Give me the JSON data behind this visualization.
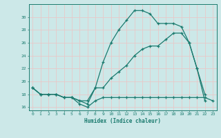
{
  "line1_x": [
    0,
    1,
    2,
    3,
    4,
    5,
    6,
    7,
    8,
    9,
    10,
    11,
    12,
    13,
    14,
    15,
    16,
    17,
    18,
    19,
    20,
    21,
    22
  ],
  "line1_y": [
    19,
    18,
    18,
    18,
    17.5,
    17.5,
    17,
    16.5,
    19,
    23,
    26,
    28,
    29.5,
    31,
    31,
    30.5,
    29,
    29,
    29,
    28.5,
    26,
    22,
    18
  ],
  "line2_x": [
    0,
    1,
    2,
    3,
    4,
    5,
    6,
    7,
    8,
    9,
    10,
    11,
    12,
    13,
    14,
    15,
    16,
    17,
    18,
    19,
    20,
    21,
    22
  ],
  "line2_y": [
    19,
    18,
    18,
    18,
    17.5,
    17.5,
    17,
    17,
    19,
    19,
    20.5,
    21.5,
    22.5,
    24,
    25,
    25.5,
    25.5,
    26.5,
    27.5,
    27.5,
    26,
    22,
    17
  ],
  "line3_x": [
    0,
    1,
    2,
    3,
    4,
    5,
    6,
    7,
    8,
    9,
    10,
    11,
    12,
    13,
    14,
    15,
    16,
    17,
    18,
    19,
    20,
    21,
    22,
    23
  ],
  "line3_y": [
    19,
    18,
    18,
    18,
    17.5,
    17.5,
    16.5,
    16,
    17,
    17.5,
    17.5,
    17.5,
    17.5,
    17.5,
    17.5,
    17.5,
    17.5,
    17.5,
    17.5,
    17.5,
    17.5,
    17.5,
    17.5,
    17
  ],
  "color": "#1a7a6e",
  "bg_color": "#cce8e8",
  "grid_color": "#b8d8d8",
  "xlabel": "Humidex (Indice chaleur)",
  "ylim": [
    15.5,
    32
  ],
  "xlim": [
    -0.5,
    23.5
  ],
  "yticks": [
    16,
    18,
    20,
    22,
    24,
    26,
    28,
    30
  ],
  "xticks": [
    0,
    1,
    2,
    3,
    4,
    5,
    6,
    7,
    8,
    9,
    10,
    11,
    12,
    13,
    14,
    15,
    16,
    17,
    18,
    19,
    20,
    21,
    22,
    23
  ]
}
